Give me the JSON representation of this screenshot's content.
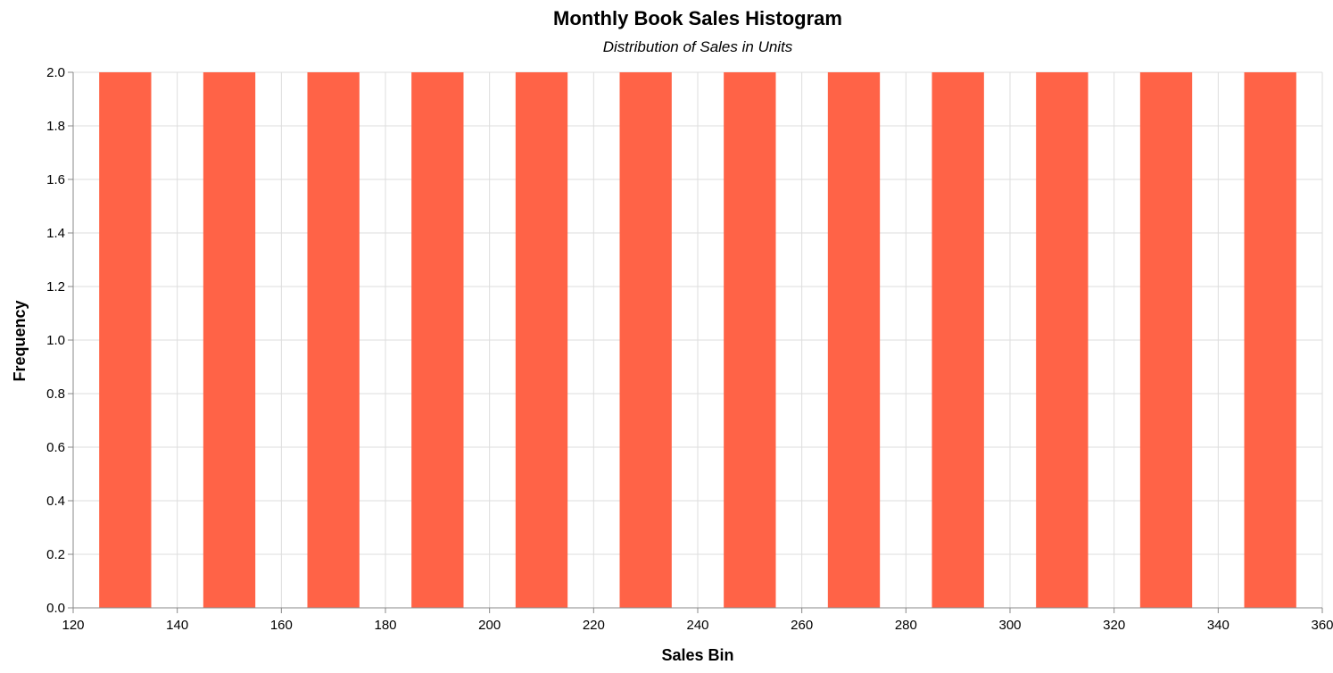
{
  "chart_data": {
    "type": "bar",
    "title": "Monthly Book Sales Histogram",
    "subtitle": "Distribution of Sales in Units",
    "xlabel": "Sales Bin",
    "ylabel": "Frequency",
    "xlim": [
      120,
      360
    ],
    "ylim": [
      0,
      2
    ],
    "x_ticks": [
      120,
      140,
      160,
      180,
      200,
      220,
      240,
      260,
      280,
      300,
      320,
      340,
      360
    ],
    "y_ticks": [
      0.0,
      0.2,
      0.4,
      0.6,
      0.8,
      1.0,
      1.2,
      1.4,
      1.6,
      1.8,
      2.0
    ],
    "grid": true,
    "legend": "none",
    "bar_color": "#ff6347",
    "bins": [
      {
        "start": 125,
        "end": 135,
        "value": 2
      },
      {
        "start": 145,
        "end": 155,
        "value": 2
      },
      {
        "start": 165,
        "end": 175,
        "value": 2
      },
      {
        "start": 185,
        "end": 195,
        "value": 2
      },
      {
        "start": 205,
        "end": 215,
        "value": 2
      },
      {
        "start": 225,
        "end": 235,
        "value": 2
      },
      {
        "start": 245,
        "end": 255,
        "value": 2
      },
      {
        "start": 265,
        "end": 275,
        "value": 2
      },
      {
        "start": 285,
        "end": 295,
        "value": 2
      },
      {
        "start": 305,
        "end": 315,
        "value": 2
      },
      {
        "start": 325,
        "end": 335,
        "value": 2
      },
      {
        "start": 345,
        "end": 355,
        "value": 2
      }
    ]
  }
}
